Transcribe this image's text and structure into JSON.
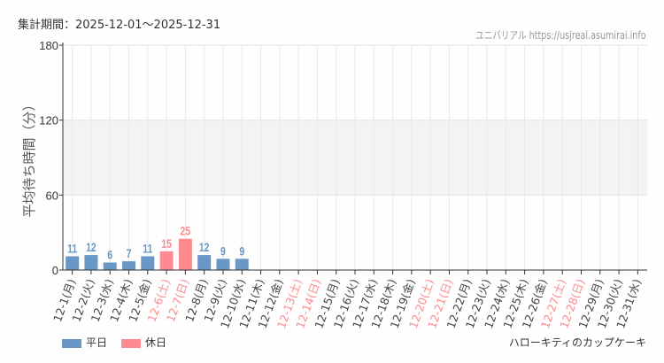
{
  "header": {
    "period": "集計期間：2025-12-01〜2025-12-31",
    "credit": "ユニバリアル https://usjreal.asumirai.info"
  },
  "footer": {
    "attraction": "ハローキティのカップケーキ"
  },
  "chart_data": {
    "type": "bar",
    "ylabel": "平均待ち時間（分）",
    "ylim": [
      0,
      180
    ],
    "yticks": [
      0,
      60,
      120,
      180
    ],
    "shaded_band": [
      60,
      120
    ],
    "grid": true,
    "legend_position": "bottom-left",
    "colors": {
      "weekday": "#6a98c6",
      "holiday": "#fd8b8f"
    },
    "series": [
      {
        "name": "平日"
      },
      {
        "name": "休日"
      }
    ],
    "categories": [
      "12-1(月)",
      "12-2(火)",
      "12-3(水)",
      "12-4(木)",
      "12-5(金)",
      "12-6(土)",
      "12-7(日)",
      "12-8(月)",
      "12-9(火)",
      "12-10(水)",
      "12-11(木)",
      "12-12(金)",
      "12-13(土)",
      "12-14(日)",
      "12-15(月)",
      "12-16(火)",
      "12-17(水)",
      "12-18(木)",
      "12-19(金)",
      "12-20(土)",
      "12-21(日)",
      "12-22(月)",
      "12-23(火)",
      "12-24(水)",
      "12-25(木)",
      "12-26(金)",
      "12-27(土)",
      "12-28(日)",
      "12-29(月)",
      "12-30(火)",
      "12-31(水)"
    ],
    "holiday": [
      false,
      false,
      false,
      false,
      false,
      true,
      true,
      false,
      false,
      false,
      false,
      false,
      true,
      true,
      false,
      false,
      false,
      false,
      false,
      true,
      true,
      false,
      false,
      false,
      false,
      false,
      true,
      true,
      false,
      false,
      false
    ],
    "values": [
      11,
      12,
      6,
      7,
      11,
      15,
      25,
      12,
      9,
      9,
      null,
      null,
      null,
      null,
      null,
      null,
      null,
      null,
      null,
      null,
      null,
      null,
      null,
      null,
      null,
      null,
      null,
      null,
      null,
      null,
      null
    ]
  }
}
